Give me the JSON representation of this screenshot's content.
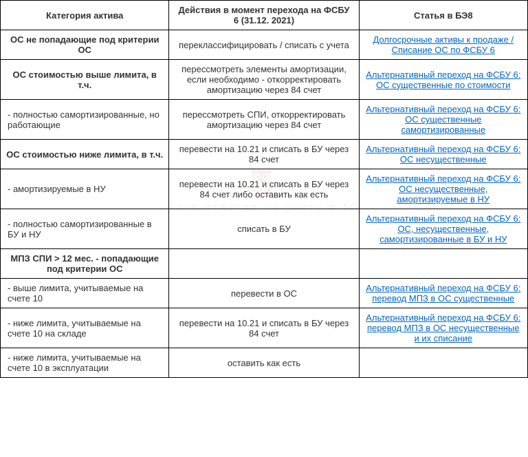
{
  "table": {
    "columns": [
      "Категория актива",
      "Действия в момент перехода на ФСБУ 6 (31.12. 2021)",
      "Статья в БЭ8"
    ],
    "rows": [
      {
        "cat": "ОС не попадающие под критерии ОС",
        "cat_bold": true,
        "act": "переклассифицировать / списать с учета",
        "link": "Долгосрочные активы к продаже / Списание ОС по ФСБУ 6"
      },
      {
        "cat": "ОС стоимостью выше лимита, в т.ч.",
        "cat_bold": true,
        "act": "перессмотреть элементы амортизации, если необходимо -  откорректировать амортизацию через 84 счет",
        "link": "Альтернативный переход на ФСБУ 6: ОС существенные по стоимости"
      },
      {
        "cat": " - полностью самортизированные, но работающие",
        "cat_bold": false,
        "act": "перессмотреть СПИ, откорректировать амортизацию через 84 счет",
        "link": "Альтернативный переход на ФСБУ 6: ОС существенные самортизированные"
      },
      {
        "cat": "ОС стоимостью ниже лимита, в т.ч.",
        "cat_bold": true,
        "act": "перевести на 10.21 и списать в БУ через 84 счет",
        "link": "Альтернативный переход на ФСБУ 6: ОС несущественные"
      },
      {
        "cat": "- амортизируемые в НУ",
        "cat_bold": false,
        "act": "перевести на 10.21 и списать в БУ через 84 счет либо оставить как есть",
        "link": "Альтернативный переход на ФСБУ 6: ОС несущественные, амортизируемые в НУ"
      },
      {
        "cat": "- полностью самортизированные в БУ и НУ",
        "cat_bold": false,
        "act": "списать в БУ",
        "link": "Альтернативный переход на ФСБУ 6: ОС, несущественные, самортизированные в БУ и НУ"
      },
      {
        "cat": "МПЗ СПИ > 12 мес. - попадающие под критерии ОС",
        "cat_bold": true,
        "act": "",
        "link": ""
      },
      {
        "cat": "- выше лимита, учитываемые на счете 10",
        "cat_bold": false,
        "act": "перевести в ОС",
        "link": "Альтернативный переход на ФСБУ 6: перевод МПЗ в ОС существенные"
      },
      {
        "cat": "- ниже лимита, учитываемые на счете 10 на складе",
        "cat_bold": false,
        "act": "перевести на 10.21 и списать в БУ через 84 счет",
        "link": "Альтернативный переход на ФСБУ 6: перевод МПЗ в ОС несущественные и их списание"
      },
      {
        "cat": "-  ниже лимита, учитываемые на счете 10 в эксплуатации",
        "cat_bold": false,
        "act": "оставить как есть",
        "link": ""
      }
    ],
    "link_color": "#0066cc",
    "border_color": "#000000"
  },
  "watermark": {
    "sub": "База ответов по учету в 1С"
  }
}
